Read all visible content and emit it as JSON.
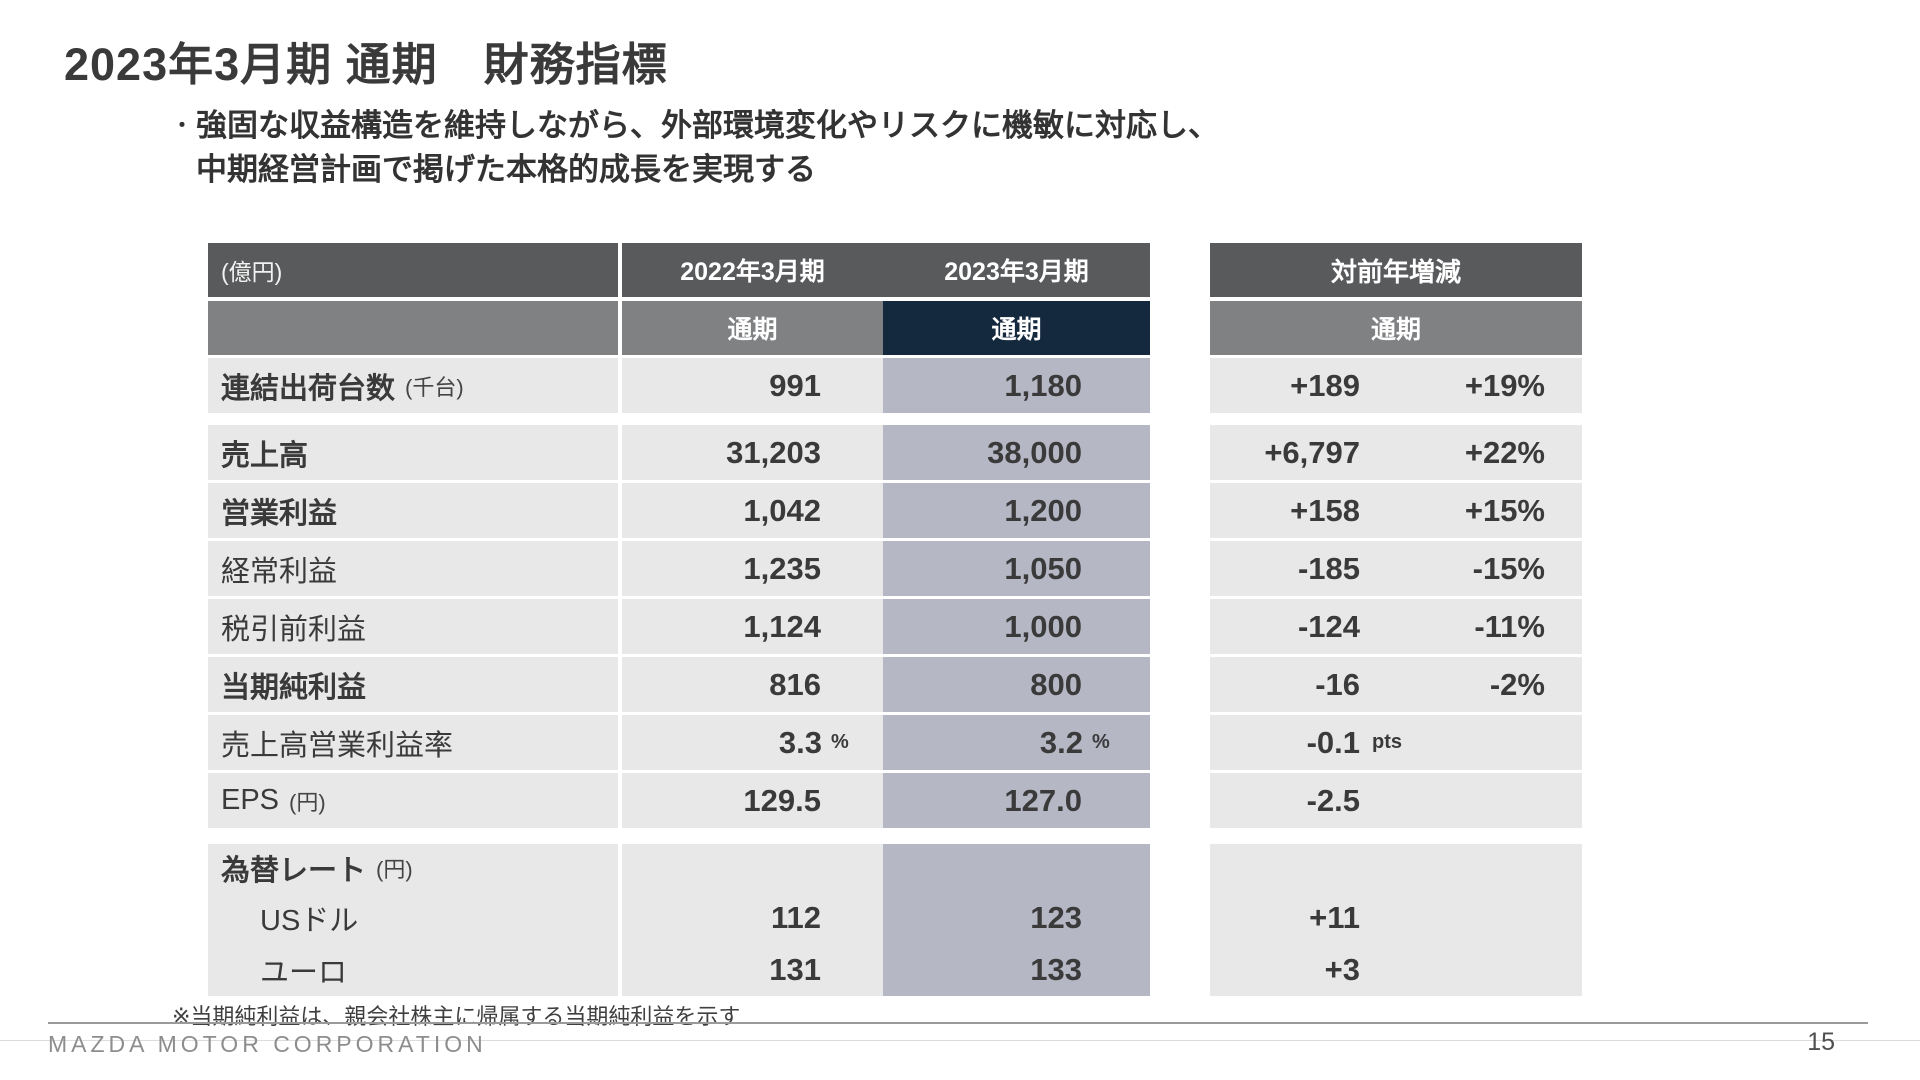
{
  "slide": {
    "title": "2023年3月期 通期　財務指標",
    "bullet": {
      "marker": "・",
      "line1": "強固な収益構造を維持しながら、外部環境変化やリスクに機敏に対応し、",
      "line2": "中期経営計画で掲げた本格的成長を実現する"
    },
    "footnote": "※当期純利益は、親会社株主に帰属する当期純利益を示す",
    "footer": {
      "company": "MAZDA MOTOR CORPORATION",
      "page": "15"
    }
  },
  "main_table": {
    "unit_header": "(億円)",
    "col_2022": "2022年3月期",
    "col_2023": "2023年3月期",
    "period_2022": "通期",
    "period_2023": "通期",
    "rows": {
      "shipments": {
        "label": "連結出荷台数",
        "unit": "(千台)",
        "fy2022": "991",
        "fy2023": "1,180"
      },
      "revenue": {
        "label": "売上高",
        "fy2022": "31,203",
        "fy2023": "38,000"
      },
      "operating_profit": {
        "label": "営業利益",
        "fy2022": "1,042",
        "fy2023": "1,200"
      },
      "ordinary_profit": {
        "label": "経常利益",
        "fy2022": "1,235",
        "fy2023": "1,050"
      },
      "pretax_profit": {
        "label": "税引前利益",
        "fy2022": "1,124",
        "fy2023": "1,000"
      },
      "net_income": {
        "label": "当期純利益",
        "fy2022": "816",
        "fy2023": "800"
      },
      "operating_margin": {
        "label": "売上高営業利益率",
        "suffix": "%",
        "fy2022": "3.3",
        "fy2023": "3.2"
      },
      "eps": {
        "label": "EPS",
        "unit": "(円)",
        "fy2022": "129.5",
        "fy2023": "127.0"
      }
    },
    "fx": {
      "label": "為替レート",
      "unit": "(円)",
      "usd": {
        "label": "USドル",
        "fy2022": "112",
        "fy2023": "123"
      },
      "eur": {
        "label": "ユーロ",
        "fy2022": "131",
        "fy2023": "133"
      }
    }
  },
  "delta_table": {
    "header": "対前年増減",
    "period": "通期",
    "rows": {
      "shipments": {
        "value": "+189",
        "pct": "+19%"
      },
      "revenue": {
        "value": "+6,797",
        "pct": "+22%"
      },
      "operating_profit": {
        "value": "+158",
        "pct": "+15%"
      },
      "ordinary_profit": {
        "value": "-185",
        "pct": "-15%"
      },
      "pretax_profit": {
        "value": "-124",
        "pct": "-11%"
      },
      "net_income": {
        "value": "-16",
        "pct": "-2%"
      },
      "operating_margin": {
        "value": "-0.1",
        "suffix": "pts"
      },
      "eps": {
        "value": "-2.5"
      },
      "fx_usd": {
        "value": "+11"
      },
      "fx_eur": {
        "value": "+3"
      }
    }
  },
  "colors": {
    "header_dark": "#595a5c",
    "header_mid": "#7f8183",
    "accent_navy": "#14293e",
    "cell_gray": "#e8e8e9",
    "cell_lavender": "#b5b7c4",
    "text": "#3a3a3a"
  }
}
